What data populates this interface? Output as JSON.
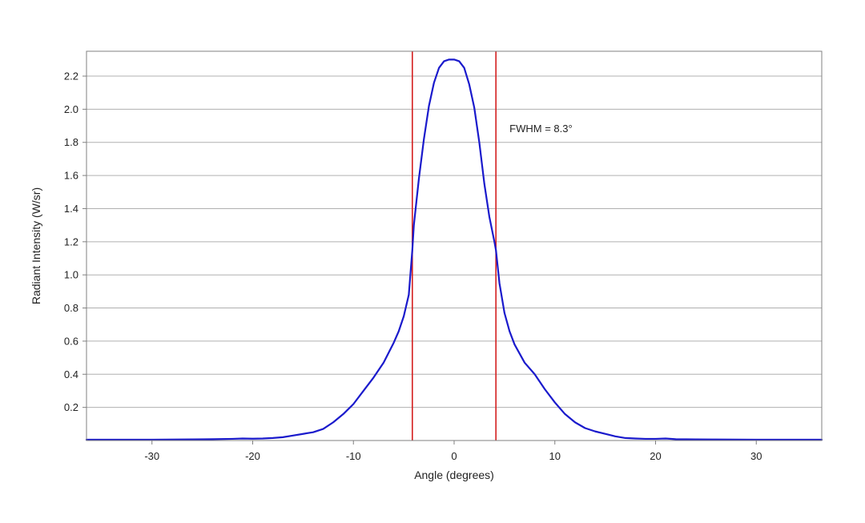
{
  "chart_data": {
    "type": "line",
    "title": "",
    "xlabel": "Angle (degrees)",
    "ylabel": "Radiant Intensity (W/sr)",
    "xlim": [
      -36.5,
      36.5
    ],
    "ylim": [
      0,
      2.35
    ],
    "xticks": [
      -30,
      -20,
      -10,
      0,
      10,
      20,
      30
    ],
    "xtick_labels": [
      "-30",
      "-20",
      "-10",
      "0",
      "10",
      "20",
      "30"
    ],
    "yticks": [
      0.2,
      0.4,
      0.6,
      0.8,
      1.0,
      1.2,
      1.4,
      1.6,
      1.8,
      2.0,
      2.2
    ],
    "ytick_labels": [
      "0.2",
      "0.4",
      "0.6",
      "0.8",
      "1.0",
      "1.2",
      "1.4",
      "1.6",
      "1.8",
      "2.0",
      "2.2"
    ],
    "grid": "horizontal",
    "legend": "none",
    "series": [
      {
        "color": "#1a1acc",
        "x": [
          -36.5,
          -34,
          -30,
          -26,
          -24,
          -22,
          -21,
          -20,
          -19,
          -18,
          -17,
          -16,
          -15,
          -14,
          -13,
          -12,
          -11,
          -10,
          -9,
          -8,
          -7,
          -6,
          -5.5,
          -5,
          -4.5,
          -4.15,
          -4,
          -3.5,
          -3,
          -2.5,
          -2,
          -1.5,
          -1,
          -0.5,
          0,
          0.5,
          1,
          1.5,
          2,
          2.5,
          3,
          3.5,
          4,
          4.15,
          4.5,
          5,
          5.5,
          6,
          7,
          8,
          9,
          10,
          11,
          12,
          13,
          14,
          15,
          16,
          17,
          18,
          19,
          20,
          21,
          22,
          24,
          26,
          30,
          34,
          36.5
        ],
        "y": [
          0.005,
          0.005,
          0.005,
          0.007,
          0.008,
          0.01,
          0.012,
          0.011,
          0.012,
          0.015,
          0.02,
          0.03,
          0.04,
          0.05,
          0.07,
          0.11,
          0.16,
          0.22,
          0.3,
          0.38,
          0.47,
          0.59,
          0.66,
          0.75,
          0.88,
          1.15,
          1.3,
          1.58,
          1.82,
          2.02,
          2.16,
          2.25,
          2.29,
          2.3,
          2.3,
          2.29,
          2.25,
          2.15,
          2.01,
          1.8,
          1.55,
          1.35,
          1.2,
          1.15,
          0.95,
          0.77,
          0.66,
          0.58,
          0.47,
          0.4,
          0.31,
          0.23,
          0.16,
          0.11,
          0.075,
          0.055,
          0.04,
          0.025,
          0.015,
          0.012,
          0.01,
          0.01,
          0.012,
          0.008,
          0.007,
          0.006,
          0.005,
          0.005,
          0.005
        ]
      }
    ],
    "vlines": [
      {
        "x": -4.15,
        "color": "#d42020"
      },
      {
        "x": 4.15,
        "color": "#d42020"
      }
    ],
    "annotations": [
      {
        "text": "FWHM = 8.3°",
        "x": 5.5,
        "y": 1.88
      }
    ],
    "colors": {
      "grid": "#b0b0b0",
      "axis": "#808080",
      "curve": "#1a1acc",
      "marker_lines": "#d42020"
    }
  }
}
